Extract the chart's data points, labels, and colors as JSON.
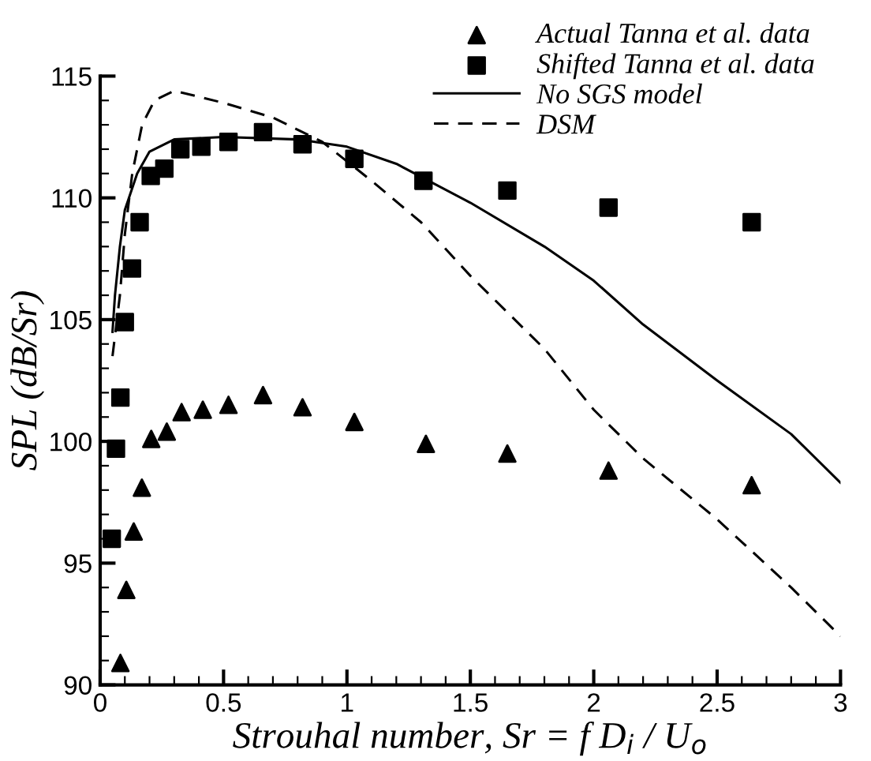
{
  "chart_data": {
    "type": "scatter",
    "xlabel": "Strouhal number, Sr = f D$_{i}$ / U$_{o}$",
    "ylabel": "SPL (dB/Sr)",
    "xlim": [
      0,
      3
    ],
    "ylim": [
      90,
      115
    ],
    "xticks": [
      0,
      0.5,
      1,
      1.5,
      2,
      2.5,
      3
    ],
    "yticks": [
      90,
      95,
      100,
      105,
      110,
      115
    ],
    "legend": "top right",
    "grid": false,
    "series": [
      {
        "name": "Actual Tanna et al. data",
        "marker": "triangle",
        "color": "#000000",
        "x": [
          0.082,
          0.106,
          0.136,
          0.169,
          0.207,
          0.27,
          0.33,
          0.416,
          0.52,
          0.66,
          0.82,
          1.03,
          1.32,
          1.65,
          2.06,
          2.64
        ],
        "values": [
          90.9,
          93.9,
          96.3,
          98.1,
          100.1,
          100.4,
          101.2,
          101.3,
          101.5,
          101.9,
          101.4,
          100.8,
          99.9,
          99.5,
          98.8,
          98.2
        ]
      },
      {
        "name": "Shifted Tanna et al. data",
        "marker": "square",
        "color": "#000000",
        "x": [
          0.047,
          0.064,
          0.082,
          0.1,
          0.129,
          0.16,
          0.205,
          0.26,
          0.325,
          0.41,
          0.52,
          0.66,
          0.82,
          1.03,
          1.31,
          1.65,
          2.06,
          2.64
        ],
        "values": [
          96.0,
          99.7,
          101.8,
          104.9,
          107.1,
          109.0,
          110.9,
          111.2,
          112.0,
          112.1,
          112.3,
          112.7,
          112.2,
          111.6,
          110.7,
          110.3,
          109.6,
          109.0
        ]
      },
      {
        "name": "No SGS model",
        "type": "line",
        "line_style": "solid",
        "color": "#000000",
        "x": [
          0.05,
          0.06,
          0.08,
          0.1,
          0.15,
          0.2,
          0.3,
          0.5,
          0.8,
          1.0,
          1.2,
          1.5,
          1.8,
          2.0,
          2.2,
          2.5,
          2.8,
          3.0
        ],
        "values": [
          104.5,
          106,
          108,
          109.5,
          111,
          111.9,
          112.4,
          112.5,
          112.4,
          112.1,
          111.4,
          109.8,
          108,
          106.6,
          104.8,
          102.5,
          100.3,
          98.3
        ]
      },
      {
        "name": "DSM",
        "type": "line",
        "line_style": "dashed",
        "color": "#000000",
        "x": [
          0.05,
          0.08,
          0.1,
          0.13,
          0.17,
          0.22,
          0.3,
          0.5,
          0.7,
          0.9,
          1.0,
          1.1,
          1.3,
          1.5,
          1.8,
          2.0,
          2.2,
          2.5,
          2.8,
          3.0
        ],
        "values": [
          103.5,
          106,
          108.5,
          111,
          113,
          114,
          114.4,
          113.9,
          113.3,
          112.3,
          111.5,
          110.7,
          109,
          106.8,
          103.8,
          101.3,
          99.3,
          96.8,
          94,
          92
        ]
      }
    ]
  }
}
